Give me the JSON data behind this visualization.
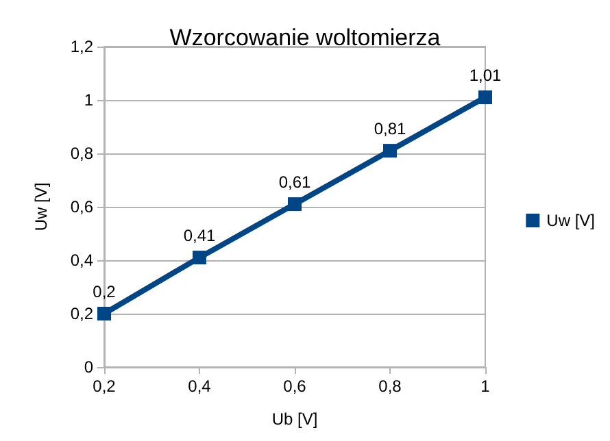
{
  "chart_data": {
    "type": "line",
    "title": "Wzorcowanie woltomierza",
    "xlabel": "Ub [V]",
    "ylabel": "Uw [V]",
    "x": [
      0.2,
      0.4,
      0.6,
      0.8,
      1
    ],
    "series": [
      {
        "name": "Uw [V]",
        "color": "#004586",
        "values": [
          0.2,
          0.41,
          0.61,
          0.81,
          1.01
        ],
        "value_labels": [
          "0,2",
          "0,41",
          "0,61",
          "0,81",
          "1,01"
        ]
      }
    ],
    "xlim": [
      0.2,
      1
    ],
    "xticks": [
      {
        "value": 0.2,
        "label": "0,2"
      },
      {
        "value": 0.4,
        "label": "0,4"
      },
      {
        "value": 0.6,
        "label": "0,6"
      },
      {
        "value": 0.8,
        "label": "0,8"
      },
      1
    ],
    "ylim": [
      0,
      1.2
    ],
    "yticks": [
      0,
      {
        "value": 0.2,
        "label": "0,2"
      },
      {
        "value": 0.4,
        "label": "0,4"
      },
      {
        "value": 0.6,
        "label": "0,6"
      },
      {
        "value": 0.8,
        "label": "0,8"
      },
      1,
      {
        "value": 1.2,
        "label": "1,2"
      }
    ],
    "grid": "y",
    "legend": "right",
    "marker": "square",
    "line_style": "solid"
  }
}
